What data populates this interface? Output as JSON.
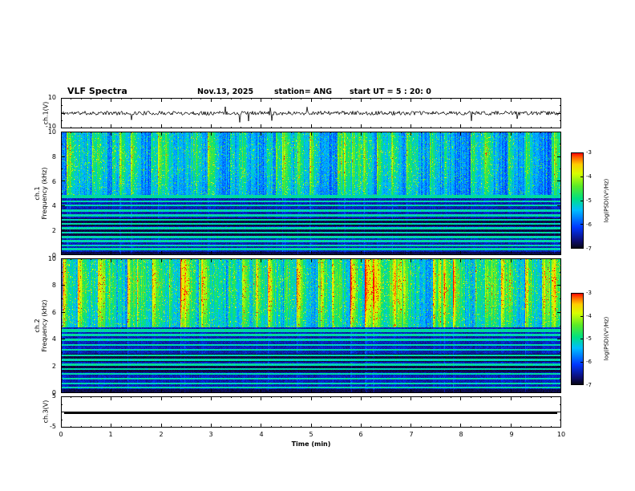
{
  "title": "VLF Spectra",
  "header": {
    "date": "Nov.13, 2025",
    "station": "station= ANG",
    "start_ut": "start UT =  5 : 20: 0"
  },
  "axes": {
    "time_label": "Time (min)",
    "time_ticks": [
      "0",
      "1",
      "2",
      "3",
      "4",
      "5",
      "6",
      "7",
      "8",
      "9",
      "10"
    ],
    "freq_ticks": [
      "10",
      "8",
      "6",
      "4",
      "2",
      "0"
    ],
    "freq_axis_label": "Frequency (kHz)",
    "ch1_wave_label": "ch.1(V)",
    "ch1_wave_ymax": "10",
    "ch1_wave_ymin": "-10",
    "ch1_spec_channel": "ch.1",
    "ch2_spec_channel": "ch.2",
    "ch3_wave_label": "ch.3(V)",
    "ch3_wave_ymax": "5",
    "ch3_wave_ymin": "-5"
  },
  "colorbar": {
    "label": "log(PSD)(V²/Hz)",
    "ticks": [
      "-3",
      "-4",
      "-5",
      "-6",
      "-7"
    ]
  },
  "chart_data": [
    {
      "type": "line",
      "name": "ch1_waveform",
      "ylabel": "ch.1(V)",
      "xlim": [
        0,
        10
      ],
      "ylim": [
        -10,
        10
      ],
      "description": "continuous black noise trace centered on 0 V, amplitude mostly within ±2 V with sparse narrow spikes reaching roughly ±8 V"
    },
    {
      "type": "heatmap",
      "name": "ch1_spectrogram",
      "xlabel": "Time (min)",
      "ylabel": "Frequency (kHz)",
      "xlim": [
        0,
        10
      ],
      "ylim": [
        0,
        10
      ],
      "zlabel": "log(PSD)(V²/Hz)",
      "zlim": [
        -7,
        -3
      ],
      "band_split_khz": 4.9,
      "strong_line_khz": 4.72,
      "lines_khz": [
        4.35,
        4.0,
        3.6,
        3.2,
        2.85,
        2.5,
        2.15,
        1.8,
        1.45,
        1.1,
        0.75,
        0.45
      ],
      "dark_bands_khz": [
        [
          1.55,
          2.05
        ],
        [
          2.35,
          2.95
        ],
        [
          0.0,
          0.25
        ]
      ],
      "top_gain": 1.0,
      "base_boost": 0.0,
      "description": "dense vertical broadband sferic streaks above ~5 kHz (blue/green/yellow on dark blue), bright cyan horizontal line near 4.7 kHz, darker banded region below 4.5 kHz crossed by thin green/cyan horizontal lines with nearly black bands around 1.6-2.0 and 2.4-2.9 kHz"
    },
    {
      "type": "heatmap",
      "name": "ch2_spectrogram",
      "xlabel": "Time (min)",
      "ylabel": "Frequency (kHz)",
      "xlim": [
        0,
        10
      ],
      "ylim": [
        0,
        10
      ],
      "zlabel": "log(PSD)(V²/Hz)",
      "zlim": [
        -7,
        -3
      ],
      "band_split_khz": 4.9,
      "strong_line_khz": 4.65,
      "lines_khz": [
        4.3,
        3.95,
        3.55,
        3.2,
        2.8,
        2.45,
        2.1,
        1.75,
        1.4,
        1.05,
        0.7,
        0.4
      ],
      "dark_bands_khz": [
        [
          1.5,
          2.0
        ],
        [
          2.3,
          2.9
        ],
        [
          0.0,
          0.25
        ]
      ],
      "top_gain": 1.3,
      "base_boost": 0.05,
      "description": "similar to ch.1 but more intense: the 5-10 kHz band is dominated by green/yellow with occasional orange-red cores; same dark banded low-frequency region with thin horizontal lines"
    },
    {
      "type": "line",
      "name": "ch3_waveform",
      "ylabel": "ch.3(V)",
      "xlim": [
        0,
        10
      ],
      "ylim": [
        -5,
        5
      ],
      "description": "flat thick black line at 0 V for the entire record (no signal)"
    }
  ],
  "colormap_stops": [
    [
      0.0,
      [
        6,
        6,
        18
      ]
    ],
    [
      0.08,
      [
        14,
        14,
        115
      ]
    ],
    [
      0.22,
      [
        0,
        55,
        255
      ]
    ],
    [
      0.4,
      [
        0,
        190,
        255
      ]
    ],
    [
      0.52,
      [
        0,
        225,
        130
      ]
    ],
    [
      0.65,
      [
        90,
        235,
        40
      ]
    ],
    [
      0.78,
      [
        215,
        255,
        0
      ]
    ],
    [
      0.88,
      [
        255,
        205,
        0
      ]
    ],
    [
      0.95,
      [
        255,
        100,
        0
      ]
    ],
    [
      1.0,
      [
        255,
        0,
        0
      ]
    ]
  ]
}
